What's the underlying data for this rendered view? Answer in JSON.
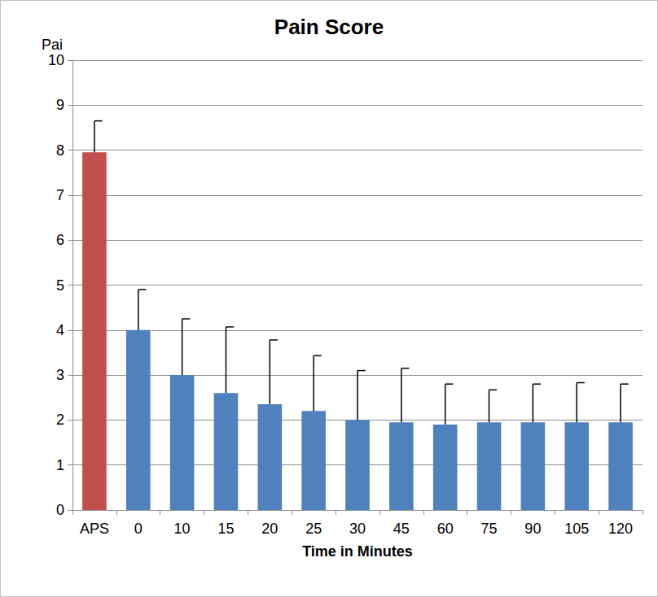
{
  "chart_data": {
    "type": "bar",
    "title": "Pain Score",
    "y_label": "Pai",
    "x_label": "Time in Minutes",
    "categories": [
      "APS",
      "0",
      "10",
      "15",
      "20",
      "25",
      "30",
      "45",
      "60",
      "75",
      "90",
      "105",
      "120"
    ],
    "values": [
      7.95,
      4.0,
      3.0,
      2.6,
      2.35,
      2.2,
      2.0,
      1.95,
      1.9,
      1.95,
      1.95,
      1.95,
      1.95
    ],
    "errors": [
      0.7,
      0.9,
      1.25,
      1.47,
      1.43,
      1.23,
      1.1,
      1.2,
      0.9,
      0.72,
      0.85,
      0.88,
      0.85
    ],
    "colors": [
      "#c0504d",
      "#4f81bd",
      "#4f81bd",
      "#4f81bd",
      "#4f81bd",
      "#4f81bd",
      "#4f81bd",
      "#4f81bd",
      "#4f81bd",
      "#4f81bd",
      "#4f81bd",
      "#4f81bd",
      "#4f81bd"
    ],
    "ylim": [
      0,
      10
    ],
    "yticks": [
      0,
      1,
      2,
      3,
      4,
      5,
      6,
      7,
      8,
      9,
      10
    ],
    "grid": true
  }
}
